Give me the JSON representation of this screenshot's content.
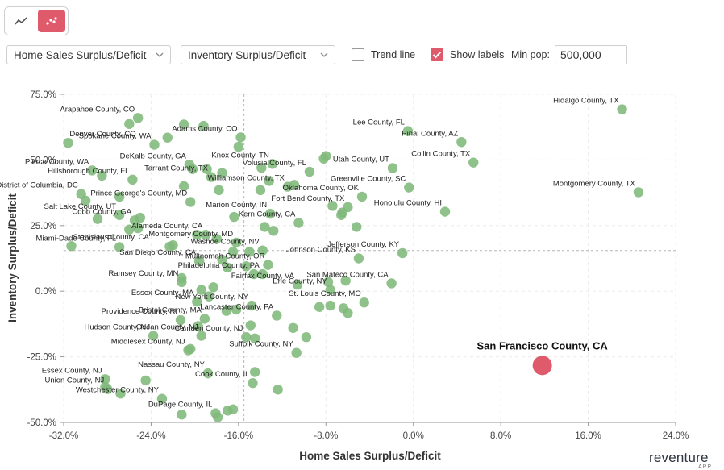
{
  "controls": {
    "x_metric": "Home Sales Surplus/Deficit",
    "y_metric": "Inventory Surplus/Deficit",
    "trend_line_label": "Trend line",
    "trend_line_checked": false,
    "show_labels_label": "Show labels",
    "show_labels_checked": true,
    "min_pop_label": "Min pop:",
    "min_pop_value": "500,000"
  },
  "colors": {
    "accent": "#df5a6b",
    "point": "#7fb87a",
    "highlight": "#df5a6b"
  },
  "brand": {
    "name": "reventure",
    "sub": "APP"
  },
  "chart_data": {
    "type": "scatter",
    "title": "",
    "xlabel": "Home Sales Surplus/Deficit",
    "ylabel": "Inventory Surplus/Deficit",
    "xlim": [
      -32,
      24
    ],
    "ylim": [
      -50,
      75
    ],
    "x_ticks": [
      -32,
      -24,
      -16,
      -8,
      0,
      8,
      16,
      24
    ],
    "y_ticks": [
      -50,
      -25,
      0,
      25,
      50,
      75
    ],
    "x_tick_labels": [
      "-32.0%",
      "-24.0%",
      "-16.0%",
      "-8.0%",
      "0.0%",
      "8.0%",
      "16.0%",
      "24.0%"
    ],
    "y_tick_labels": [
      "-50.0%",
      "-25.0%",
      "0.0%",
      "25.0%",
      "50.0%",
      "75.0%"
    ],
    "reference_lines": {
      "x": -15.5,
      "y": 15.5
    },
    "highlight": {
      "label": "San Francisco County, CA",
      "x": 11.8,
      "y": -28.3
    },
    "points": [
      {
        "label": "Hidalgo County, TX",
        "x": 19.1,
        "y": 69.3
      },
      {
        "label": "Lee County, FL",
        "x": -0.5,
        "y": 61.0
      },
      {
        "label": "Pinal County, AZ",
        "x": 4.4,
        "y": 56.8
      },
      {
        "label": "Collin County, TX",
        "x": 5.5,
        "y": 49.0
      },
      {
        "label": "Montgomery County, TX",
        "x": 20.6,
        "y": 37.7
      },
      {
        "label": "Utah County, UT",
        "x": -1.9,
        "y": 46.9
      },
      {
        "label": "Greenville County, SC",
        "x": -0.4,
        "y": 39.5
      },
      {
        "label": "Honolulu County, HI",
        "x": 2.9,
        "y": 30.3
      },
      {
        "label": "Arapahoe County, CO",
        "x": -25.2,
        "y": 66.0
      },
      {
        "label": "Adams County, CO",
        "x": -15.8,
        "y": 58.6
      },
      {
        "label": "Denver County, CO",
        "x": -31.6,
        "y": 56.5
      },
      {
        "label": "Spokane County, WA",
        "x": -23.7,
        "y": 55.8
      },
      {
        "label": "Pierce County, WA",
        "x": -29.4,
        "y": 46.0
      },
      {
        "label": "Hillsborough County, FL",
        "x": -25.7,
        "y": 42.5
      },
      {
        "label": "DeKalb County, GA",
        "x": -20.5,
        "y": 48.2
      },
      {
        "label": "Knox County, TN",
        "x": -12.9,
        "y": 48.5
      },
      {
        "label": "Volusia County, FL",
        "x": -9.5,
        "y": 45.5
      },
      {
        "label": "Tarrant County, TX",
        "x": -18.5,
        "y": 43.5
      },
      {
        "label": "Williamson County, TX",
        "x": -11.5,
        "y": 39.8
      },
      {
        "label": "District of Columbia, DC",
        "x": -30.4,
        "y": 37.0
      },
      {
        "label": "Oklahoma County, OK",
        "x": -4.7,
        "y": 36.0
      },
      {
        "label": "Prince George's County, MD",
        "x": -20.4,
        "y": 34.0
      },
      {
        "label": "Fort Bend County, TX",
        "x": -6.0,
        "y": 32.0
      },
      {
        "label": "Salt Lake County, UT",
        "x": -26.9,
        "y": 29.0
      },
      {
        "label": "Marion County, IN",
        "x": -13.1,
        "y": 29.5
      },
      {
        "label": "Cobb County, GA",
        "x": -25.5,
        "y": 27.0
      },
      {
        "label": "Kern County, CA",
        "x": -10.5,
        "y": 26.0
      },
      {
        "label": "Alameda County, CA",
        "x": -19.0,
        "y": 21.5
      },
      {
        "label": "Stanislaus County, CA",
        "x": -31.3,
        "y": 17.2
      },
      {
        "label": "Miami-Dade County, FL",
        "x": -26.9,
        "y": 16.8
      },
      {
        "label": "Montgomery County, MD",
        "x": -16.2,
        "y": 18.5
      },
      {
        "label": "Jefferson County, KY",
        "x": -1.0,
        "y": 14.5
      },
      {
        "label": "Washoe County, NV",
        "x": -13.8,
        "y": 15.5
      },
      {
        "label": "Johnson County, KS",
        "x": -5.0,
        "y": 12.5
      },
      {
        "label": "San Diego County, CA",
        "x": -19.6,
        "y": 11.5
      },
      {
        "label": "Multnomah County, OR",
        "x": -13.3,
        "y": 10.0
      },
      {
        "label": "Philadelphia County, PA",
        "x": -13.8,
        "y": 6.5
      },
      {
        "label": "Ramsey County, MN",
        "x": -21.2,
        "y": 3.5
      },
      {
        "label": "San Mateco County, CA",
        "x": -2.0,
        "y": 3.0
      },
      {
        "label": "Fairfax County, VA",
        "x": -10.6,
        "y": 2.5
      },
      {
        "label": "Erie County, NY",
        "x": -7.6,
        "y": 0.5
      },
      {
        "label": "Essex County, MA",
        "x": -19.8,
        "y": -4.0
      },
      {
        "label": "St. Louis County, MO",
        "x": -4.5,
        "y": -4.3
      },
      {
        "label": "New York County, NY",
        "x": -14.8,
        "y": -5.5
      },
      {
        "label": "Lancaster County, PA",
        "x": -12.5,
        "y": -9.3
      },
      {
        "label": "Providence County, RI",
        "x": -21.3,
        "y": -11.0
      },
      {
        "label": "Bristol County, MA",
        "x": -19.1,
        "y": -10.5
      },
      {
        "label": "Hudson County, NJ",
        "x": -23.8,
        "y": -17.0
      },
      {
        "label": "Camden County, NJ",
        "x": -15.3,
        "y": -17.5
      },
      {
        "label": "Ocean County, NJ",
        "x": -19.4,
        "y": -17.0
      },
      {
        "label": "Middlesex County, NJ",
        "x": -20.6,
        "y": -22.5
      },
      {
        "label": "Suffolk County, NY",
        "x": -10.7,
        "y": -23.5
      },
      {
        "label": "Nassau County, NY",
        "x": -18.8,
        "y": -31.3
      },
      {
        "label": "Cook County, IL",
        "x": -14.7,
        "y": -35.0
      },
      {
        "label": "Essex County, NJ",
        "x": -28.2,
        "y": -33.5
      },
      {
        "label": "Union County, NJ",
        "x": -28.0,
        "y": -37.3
      },
      {
        "label": "Westchester County, NY",
        "x": -23.0,
        "y": -41.0
      },
      {
        "label": "DuPage County, IL",
        "x": -18.1,
        "y": -46.5
      },
      {
        "label": "",
        "x": -15.0,
        "y": 15.0
      },
      {
        "label": "",
        "x": -16.4,
        "y": 28.3
      },
      {
        "label": "",
        "x": -14.6,
        "y": 6.5
      },
      {
        "label": "",
        "x": -18.9,
        "y": 46.5
      },
      {
        "label": "",
        "x": -20.2,
        "y": 46.5
      },
      {
        "label": "",
        "x": -17.8,
        "y": 38.5
      },
      {
        "label": "",
        "x": -13.9,
        "y": 47.0
      },
      {
        "label": "",
        "x": -8.2,
        "y": 50.5
      },
      {
        "label": "",
        "x": -8.0,
        "y": 51.5
      },
      {
        "label": "",
        "x": -16.0,
        "y": 55.0
      },
      {
        "label": "",
        "x": -21.0,
        "y": 63.5
      },
      {
        "label": "",
        "x": -19.2,
        "y": 63.0
      },
      {
        "label": "",
        "x": -26.0,
        "y": 63.7
      },
      {
        "label": "",
        "x": -22.5,
        "y": 58.5
      },
      {
        "label": "",
        "x": -28.5,
        "y": 44.0
      },
      {
        "label": "",
        "x": -30.0,
        "y": 34.5
      },
      {
        "label": "",
        "x": -28.9,
        "y": 27.5
      },
      {
        "label": "",
        "x": -26.0,
        "y": 23.5
      },
      {
        "label": "",
        "x": -25.2,
        "y": 24.0
      },
      {
        "label": "",
        "x": -22.3,
        "y": 17.0
      },
      {
        "label": "",
        "x": -22.0,
        "y": 17.5
      },
      {
        "label": "",
        "x": -19.8,
        "y": 21.5
      },
      {
        "label": "",
        "x": -18.0,
        "y": 20.0
      },
      {
        "label": "",
        "x": -16.5,
        "y": 15.0
      },
      {
        "label": "",
        "x": -17.5,
        "y": 12.0
      },
      {
        "label": "",
        "x": -15.3,
        "y": 9.5
      },
      {
        "label": "",
        "x": -17.0,
        "y": 9.0
      },
      {
        "label": "",
        "x": -13.6,
        "y": 24.5
      },
      {
        "label": "",
        "x": -12.8,
        "y": 23.0
      },
      {
        "label": "",
        "x": -6.5,
        "y": 30.0
      },
      {
        "label": "",
        "x": -5.2,
        "y": 24.5
      },
      {
        "label": "",
        "x": -6.6,
        "y": 29.0
      },
      {
        "label": "",
        "x": -10.9,
        "y": 40.5
      },
      {
        "label": "",
        "x": -13.2,
        "y": 42.0
      },
      {
        "label": "",
        "x": -14.0,
        "y": 38.5
      },
      {
        "label": "",
        "x": -7.4,
        "y": 32.5
      },
      {
        "label": "",
        "x": -7.8,
        "y": 3.5
      },
      {
        "label": "",
        "x": -6.2,
        "y": 4.0
      },
      {
        "label": "",
        "x": -6.4,
        "y": -6.5
      },
      {
        "label": "",
        "x": -7.6,
        "y": -5.5
      },
      {
        "label": "",
        "x": -6.0,
        "y": -8.3
      },
      {
        "label": "",
        "x": -8.6,
        "y": -6.0
      },
      {
        "label": "",
        "x": -14.9,
        "y": -13.0
      },
      {
        "label": "",
        "x": -16.2,
        "y": -7.0
      },
      {
        "label": "",
        "x": -17.1,
        "y": -7.5
      },
      {
        "label": "",
        "x": -14.5,
        "y": -18.0
      },
      {
        "label": "",
        "x": -21.2,
        "y": 5.0
      },
      {
        "label": "",
        "x": -18.3,
        "y": 1.5
      },
      {
        "label": "",
        "x": -19.4,
        "y": 0.5
      },
      {
        "label": "",
        "x": -18.7,
        "y": -2.0
      },
      {
        "label": "",
        "x": -20.4,
        "y": -22.0
      },
      {
        "label": "",
        "x": -19.7,
        "y": -13.3
      },
      {
        "label": "",
        "x": -11.0,
        "y": -14.0
      },
      {
        "label": "",
        "x": -9.8,
        "y": -17.5
      },
      {
        "label": "",
        "x": -14.5,
        "y": -30.8
      },
      {
        "label": "",
        "x": -24.5,
        "y": -34.0
      },
      {
        "label": "",
        "x": -12.4,
        "y": -37.5
      },
      {
        "label": "",
        "x": -26.8,
        "y": -39.0
      },
      {
        "label": "",
        "x": -17.0,
        "y": -45.5
      },
      {
        "label": "",
        "x": -16.5,
        "y": -45.0
      },
      {
        "label": "",
        "x": -17.9,
        "y": -48.0
      },
      {
        "label": "",
        "x": -21.2,
        "y": -47.0
      },
      {
        "label": "",
        "x": -28.2,
        "y": -36.5
      },
      {
        "label": "",
        "x": -26.9,
        "y": 36.0
      },
      {
        "label": "",
        "x": -25.0,
        "y": 28.0
      },
      {
        "label": "",
        "x": -21.0,
        "y": 40.0
      },
      {
        "label": "",
        "x": -17.5,
        "y": 45.0
      }
    ]
  }
}
